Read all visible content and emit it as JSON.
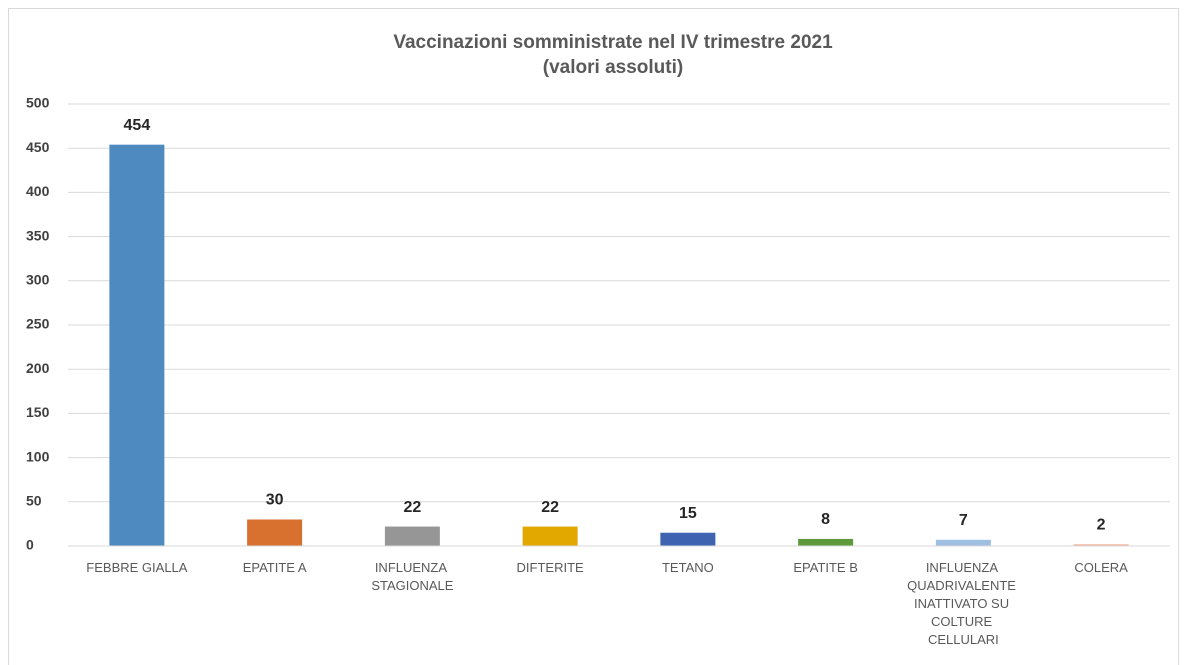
{
  "chart_data": {
    "type": "bar",
    "title": "Vaccinazioni somministrate nel IV trimestre 2021",
    "subtitle": "(valori assoluti)",
    "categories": [
      "FEBBRE GIALLA",
      "EPATITE A",
      "INFLUENZA STAGIONALE",
      "DIFTERITE",
      "TETANO",
      "EPATITE B",
      "INFLUENZA QUADRIVALENTE INATTIVATO SU COLTURE CELLULARI",
      "COLERA"
    ],
    "values": [
      454,
      30,
      22,
      22,
      15,
      8,
      7,
      2
    ],
    "colors": [
      "#4e8ac0",
      "#d8712f",
      "#969696",
      "#e2a800",
      "#3d63b1",
      "#5e9a3b",
      "#9fc0e2",
      "#f3b8a2"
    ],
    "ylim": [
      0,
      500
    ],
    "yticks": [
      0,
      50,
      100,
      150,
      200,
      250,
      300,
      350,
      400,
      450,
      500
    ],
    "grid": true,
    "data_labels": true
  }
}
